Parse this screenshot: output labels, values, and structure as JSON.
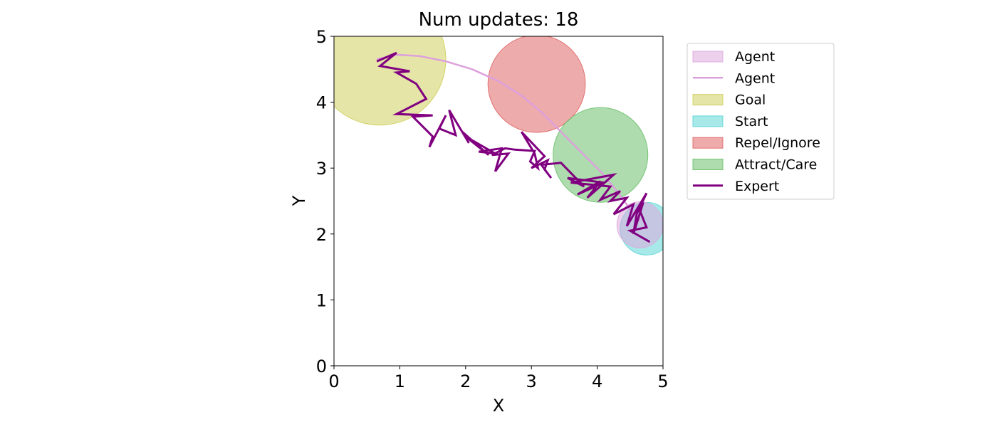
{
  "chart_data": {
    "type": "scatter",
    "title": "Num updates: 18",
    "xlabel": "X",
    "ylabel": "Y",
    "xlim": [
      0,
      5
    ],
    "ylim": [
      0,
      5
    ],
    "xticks": [
      "0",
      "1",
      "2",
      "3",
      "4",
      "5"
    ],
    "yticks": [
      "0",
      "1",
      "2",
      "3",
      "4",
      "5"
    ],
    "grid": false,
    "legend_position": "outside-top-right",
    "regions": [
      {
        "name": "Goal",
        "cx": 0.7,
        "cy": 4.65,
        "r": 1.0,
        "color": "#cfcf5e"
      },
      {
        "name": "Repel/Ignore",
        "cx": 3.08,
        "cy": 4.28,
        "r": 0.74,
        "color": "#e06666"
      },
      {
        "name": "Attract/Care",
        "cx": 4.05,
        "cy": 3.2,
        "r": 0.72,
        "color": "#6cc06c"
      },
      {
        "name": "Start",
        "cx": 4.75,
        "cy": 2.08,
        "r": 0.4,
        "color": "#5ed6d6"
      },
      {
        "name": "Agent",
        "cx": 4.65,
        "cy": 2.14,
        "r": 0.35,
        "color": "#ddaadd"
      }
    ],
    "series": [
      {
        "name": "Agent",
        "kind": "line",
        "color": "#dda0dd",
        "x": [
          0.65,
          0.95,
          1.3,
          1.7,
          2.1,
          2.5,
          2.85,
          3.15,
          3.45,
          3.75,
          4.05,
          4.3,
          4.5,
          4.65
        ],
        "y": [
          4.65,
          4.72,
          4.7,
          4.62,
          4.5,
          4.32,
          4.1,
          3.85,
          3.55,
          3.25,
          2.95,
          2.65,
          2.38,
          2.2
        ]
      },
      {
        "name": "Expert",
        "kind": "line",
        "color": "#800080",
        "x": [
          0.65,
          0.95,
          0.7,
          1.15,
          0.95,
          1.25,
          1.4,
          0.95,
          1.5,
          1.2,
          1.5,
          1.45,
          1.7,
          1.6,
          1.85,
          1.75,
          2.05,
          1.95,
          2.35,
          2.0,
          2.45,
          2.2,
          2.55,
          2.45,
          2.65,
          2.4,
          2.6,
          2.75,
          3.05,
          2.98,
          3.1,
          3.05,
          2.85,
          3.2,
          3.0,
          3.25,
          3.2,
          3.3,
          3.15,
          3.45,
          3.8,
          3.55,
          4.1,
          3.7,
          4.05,
          3.85,
          4.25,
          3.6,
          4.2,
          4.05,
          4.35,
          4.2,
          4.45,
          4.25,
          4.55,
          4.45,
          4.75,
          4.6,
          4.55,
          4.7,
          4.65,
          4.75,
          4.5,
          4.8
        ],
        "y": [
          4.62,
          4.75,
          4.55,
          4.47,
          4.45,
          4.28,
          4.05,
          3.82,
          3.8,
          3.78,
          3.48,
          3.32,
          3.8,
          3.6,
          3.5,
          3.88,
          3.38,
          3.55,
          3.2,
          3.48,
          3.22,
          3.25,
          3.3,
          2.95,
          3.22,
          3.2,
          3.3,
          3.28,
          3.26,
          3.1,
          3.0,
          3.22,
          3.55,
          3.18,
          3.0,
          3.12,
          2.98,
          2.85,
          3.05,
          3.08,
          2.72,
          2.85,
          2.78,
          2.6,
          2.8,
          2.55,
          2.9,
          2.78,
          2.72,
          2.52,
          2.65,
          2.5,
          2.55,
          2.3,
          2.45,
          2.12,
          2.62,
          2.3,
          2.0,
          2.48,
          2.35,
          2.1,
          2.05,
          1.88
        ]
      }
    ],
    "legend": [
      {
        "label": "Agent",
        "kind": "patch",
        "color": "#ddaadd"
      },
      {
        "label": "Agent",
        "kind": "line",
        "color": "#dda0dd"
      },
      {
        "label": "Goal",
        "kind": "patch",
        "color": "#cfcf5e"
      },
      {
        "label": "Start",
        "kind": "patch",
        "color": "#5ed6d6"
      },
      {
        "label": "Repel/Ignore",
        "kind": "patch",
        "color": "#e06666"
      },
      {
        "label": "Attract/Care",
        "kind": "patch",
        "color": "#6cc06c"
      },
      {
        "label": "Expert",
        "kind": "line",
        "color": "#800080"
      }
    ]
  }
}
